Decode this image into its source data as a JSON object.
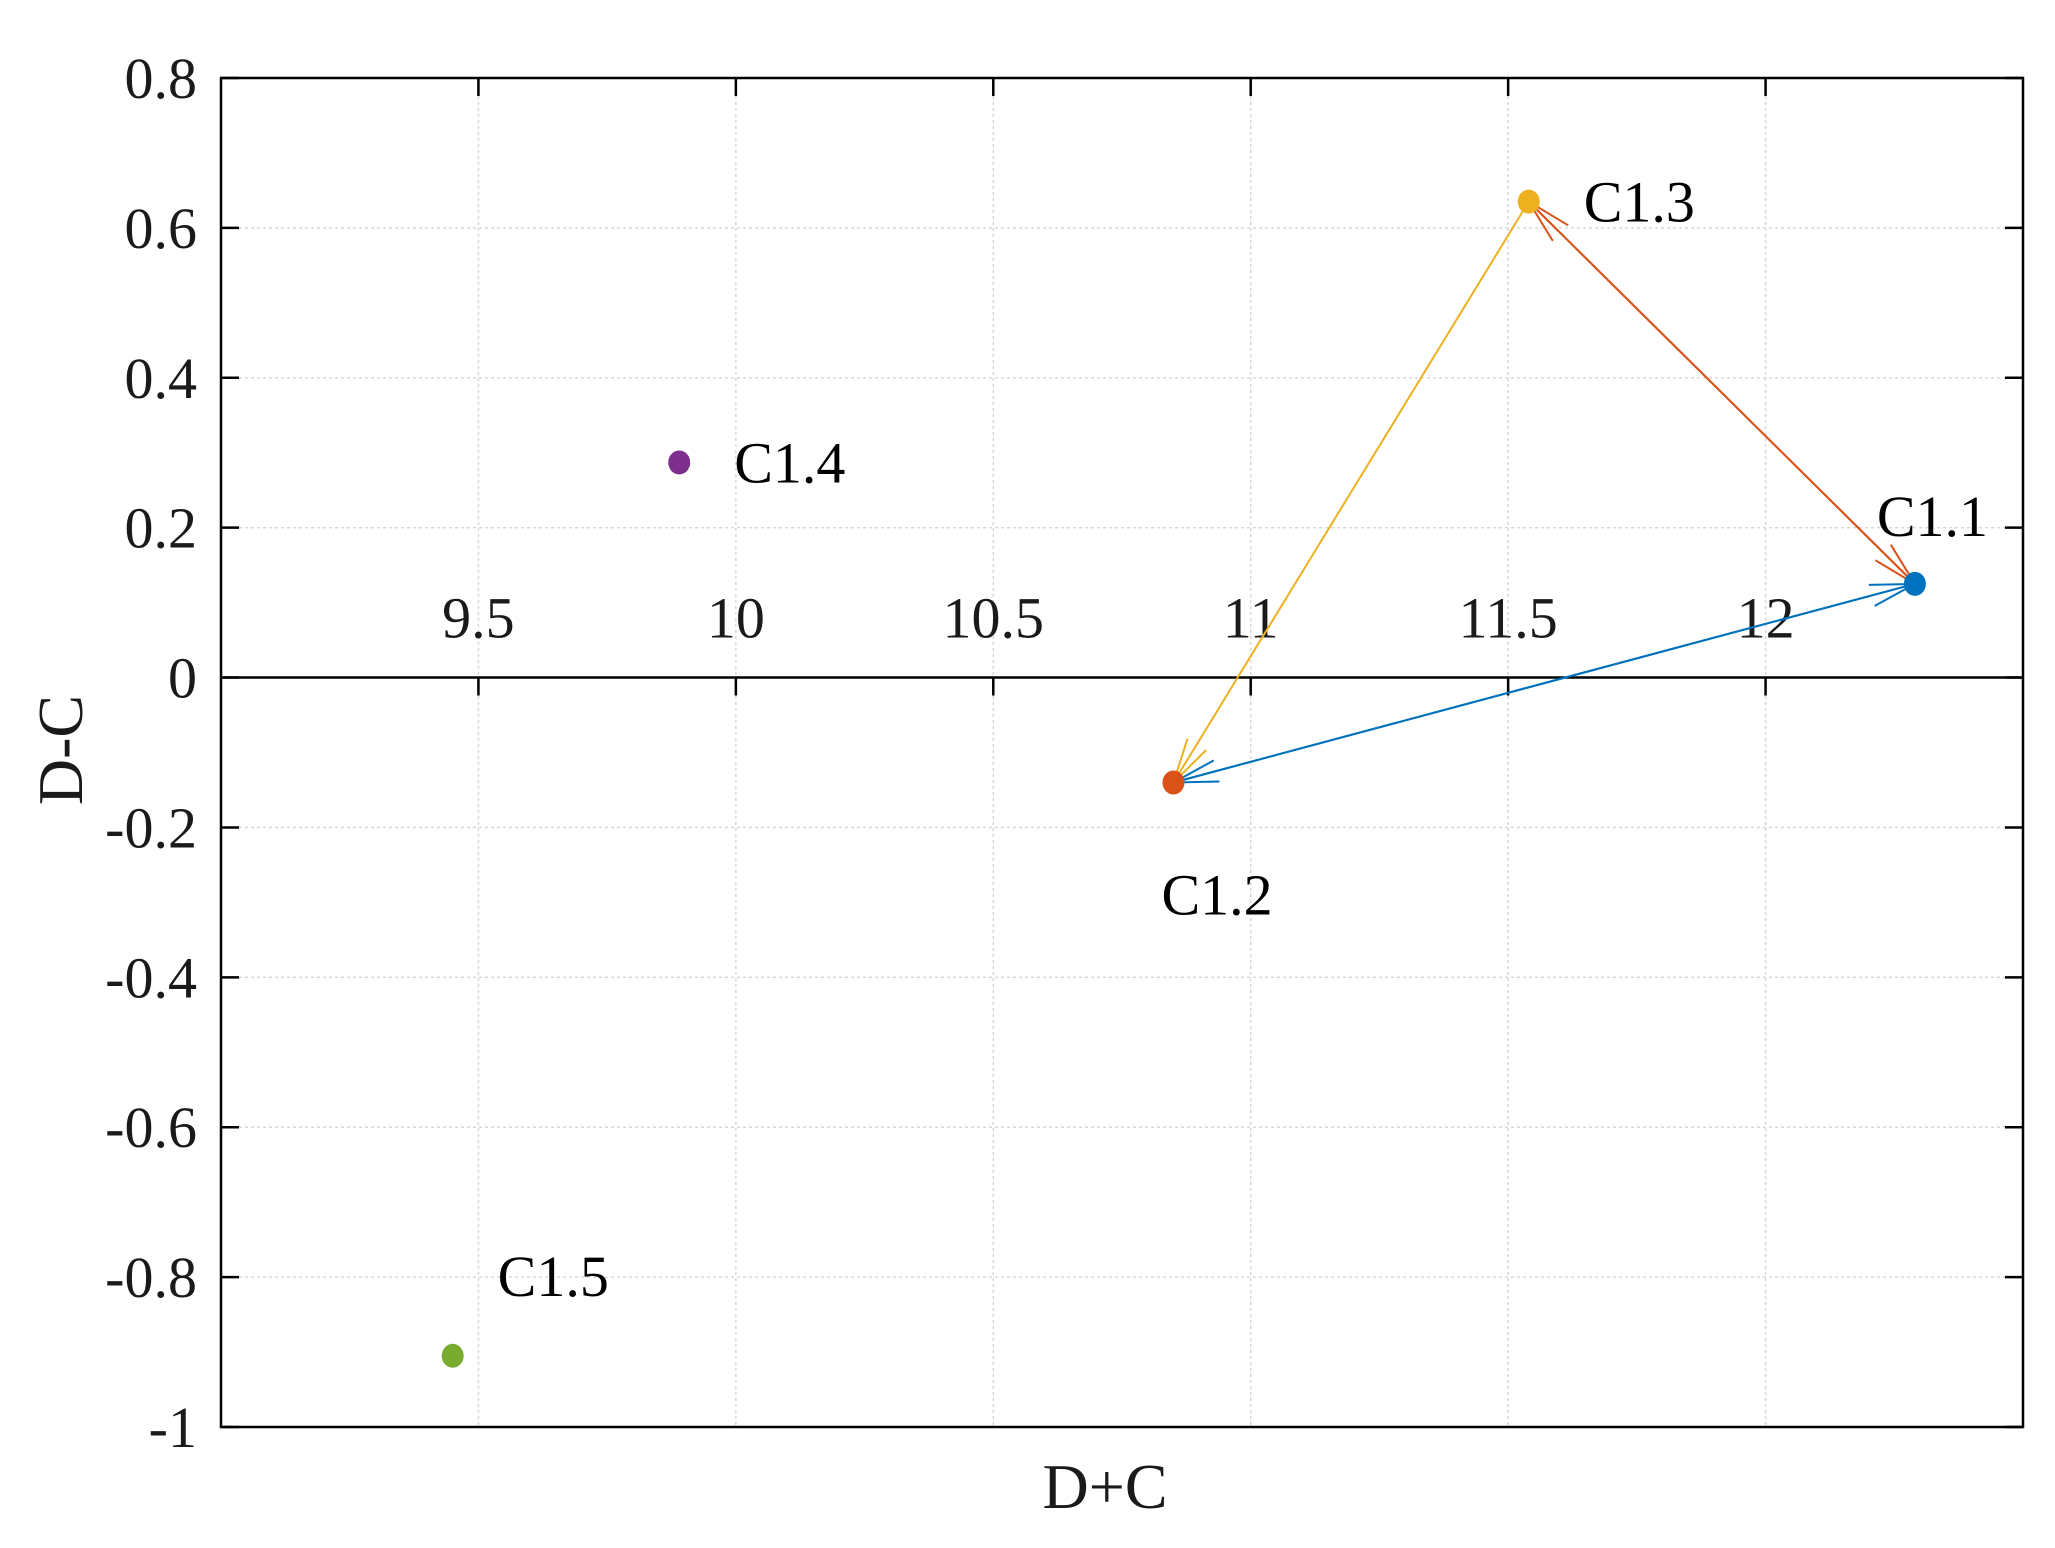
{
  "chart_data": {
    "type": "scatter",
    "title": "",
    "xlabel": "D+C",
    "ylabel": "D-C",
    "xlim": [
      9,
      12.5
    ],
    "ylim": [
      -1,
      0.8
    ],
    "grid": true,
    "x_ticks": [
      9.5,
      10,
      10.5,
      11,
      11.5,
      12
    ],
    "x_tick_labels": [
      "9.5",
      "10",
      "10.5",
      "11",
      "11.5",
      "12"
    ],
    "y_ticks": [
      -1,
      -0.8,
      -0.6,
      -0.4,
      -0.2,
      0,
      0.2,
      0.4,
      0.6,
      0.8
    ],
    "y_tick_labels": [
      "-1",
      "-0.8",
      "-0.6",
      "-0.4",
      "-0.2",
      "0",
      "0.2",
      "0.4",
      "0.6",
      "0.8"
    ],
    "points": [
      {
        "label": "C1.1",
        "x": 12.29,
        "y": 0.125,
        "color": "#0072BD",
        "label_pos": "above"
      },
      {
        "label": "C1.2",
        "x": 10.85,
        "y": -0.14,
        "color": "#D95319",
        "label_pos": "below"
      },
      {
        "label": "C1.3",
        "x": 11.54,
        "y": 0.635,
        "color": "#EDB120",
        "label_pos": "right"
      },
      {
        "label": "C1.4",
        "x": 9.89,
        "y": 0.287,
        "color": "#7E2F8E",
        "label_pos": "right"
      },
      {
        "label": "C1.5",
        "x": 9.45,
        "y": -0.905,
        "color": "#77AC30",
        "label_pos": "above-right"
      }
    ],
    "arrows": [
      {
        "from": "C1.1",
        "to": "C1.2",
        "color": "#0072BD"
      },
      {
        "from": "C1.2",
        "to": "C1.1",
        "color": "#0072BD"
      },
      {
        "from": "C1.3",
        "to": "C1.1",
        "color": "#D95319"
      },
      {
        "from": "C1.1",
        "to": "C1.3",
        "color": "#D95319"
      },
      {
        "from": "C1.3",
        "to": "C1.2",
        "color": "#EDB120"
      }
    ]
  }
}
